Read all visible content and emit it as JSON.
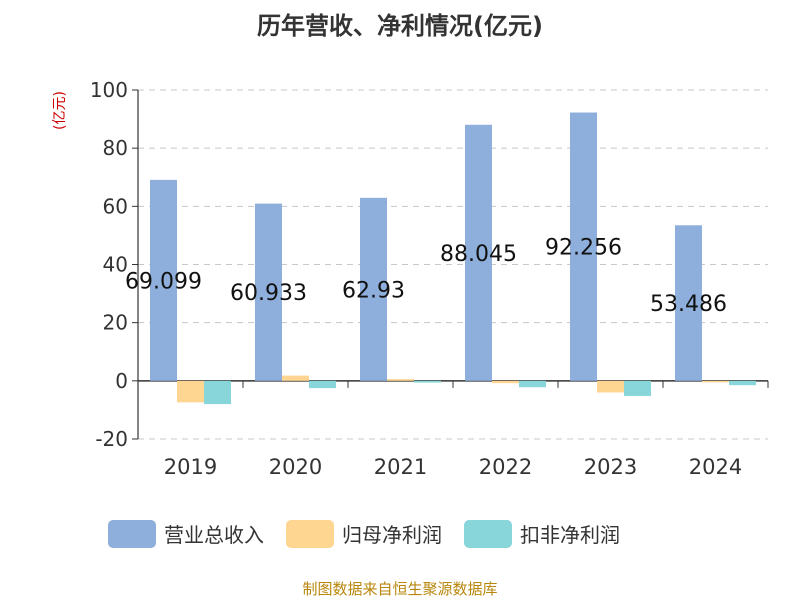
{
  "chart_data": {
    "type": "bar",
    "title": "历年营收、净利情况(亿元)",
    "ylabel": "(亿元)",
    "categories": [
      "2019",
      "2020",
      "2021",
      "2022",
      "2023",
      "2024"
    ],
    "ylim": [
      -20,
      100
    ],
    "yticks": [
      -20,
      0,
      20,
      40,
      60,
      80,
      100
    ],
    "grid": true,
    "legend_position": "bottom",
    "series": [
      {
        "name": "营业总收入",
        "color": "#8eaedb",
        "values": [
          69.099,
          60.933,
          62.93,
          88.045,
          92.256,
          53.486
        ],
        "labels": [
          "69.099",
          "60.933",
          "62.93",
          "88.045",
          "92.256",
          "53.486"
        ]
      },
      {
        "name": "归母净利润",
        "color": "#ffd592",
        "values": [
          -7.4,
          1.8,
          0.6,
          -0.8,
          -4.0,
          -0.5
        ]
      },
      {
        "name": "扣非净利润",
        "color": "#88d6d9",
        "values": [
          -8.0,
          -2.5,
          -0.6,
          -2.2,
          -5.2,
          -1.5
        ]
      }
    ]
  },
  "footer": {
    "source": "制图数据来自恒生聚源数据库"
  }
}
